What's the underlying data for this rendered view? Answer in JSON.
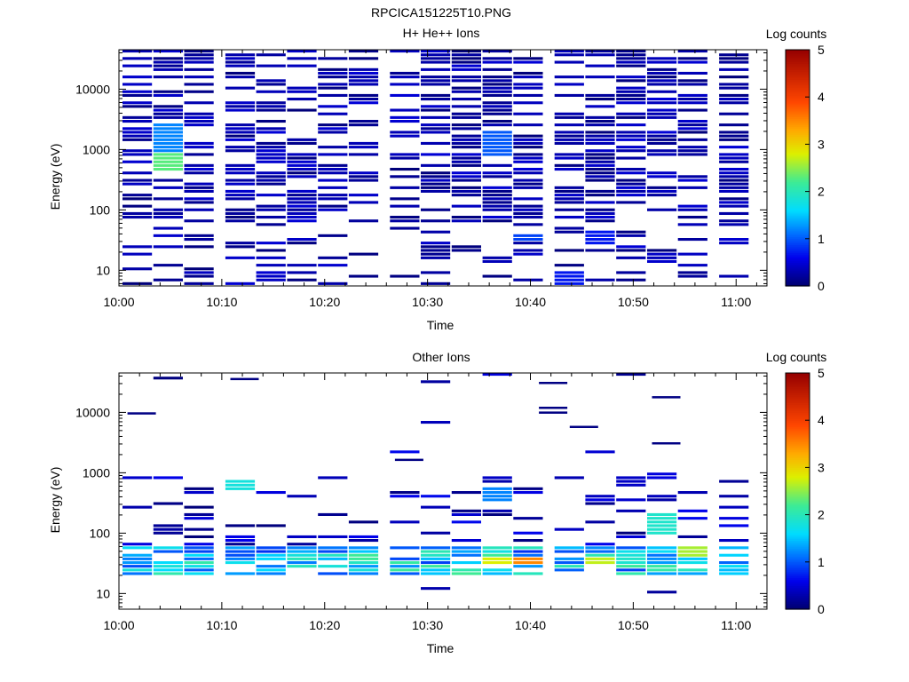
{
  "figure_title": "RPCICA151225T10.PNG",
  "chart_data": [
    {
      "type": "heatmap",
      "title": "H+ He++ Ions",
      "xlabel": "Time",
      "ylabel": "Energy (eV)",
      "x_ticks": [
        "10:00",
        "10:10",
        "10:20",
        "10:30",
        "10:40",
        "10:50",
        "11:00"
      ],
      "x_range": [
        "10:00",
        "11:03"
      ],
      "y_scale": "log",
      "y_ticks": [
        "10",
        "100",
        "1000",
        "10000"
      ],
      "y_range": [
        5.5,
        45000
      ],
      "colorbar": {
        "label": "Log counts",
        "ticks": [
          "0",
          "1",
          "2",
          "3",
          "4",
          "5"
        ],
        "range": [
          0,
          5
        ]
      },
      "time_bins": [
        "10:00",
        "10:03",
        "10:06",
        "10:10",
        "10:13",
        "10:16",
        "10:19",
        "10:22",
        "10:26",
        "10:29",
        "10:32",
        "10:35",
        "10:38",
        "10:42",
        "10:45",
        "10:48",
        "10:51",
        "10:54",
        "10:58"
      ],
      "hot_spots": [
        {
          "time": "10:04",
          "energy_min": 400,
          "energy_max": 900,
          "log_counts": 2.3
        },
        {
          "time": "10:04",
          "energy_min": 900,
          "energy_max": 2500,
          "log_counts": 1.2
        },
        {
          "time": "10:36",
          "energy_min": 700,
          "energy_max": 2000,
          "log_counts": 1.0
        },
        {
          "time": "10:40",
          "energy_min": 28,
          "energy_max": 40,
          "log_counts": 0.9
        },
        {
          "time": "10:43",
          "energy_min": 5.5,
          "energy_max": 9,
          "log_counts": 0.7
        },
        {
          "time": "10:46",
          "energy_min": 25,
          "energy_max": 45,
          "log_counts": 0.7
        }
      ],
      "background_log_counts": 0.2
    },
    {
      "type": "heatmap",
      "title": "Other Ions",
      "xlabel": "Time",
      "ylabel": "Energy (eV)",
      "x_ticks": [
        "10:00",
        "10:10",
        "10:20",
        "10:30",
        "10:40",
        "10:50",
        "11:00"
      ],
      "x_range": [
        "10:00",
        "11:03"
      ],
      "y_scale": "log",
      "y_ticks": [
        "10",
        "100",
        "1000",
        "10000"
      ],
      "y_range": [
        5.5,
        45000
      ],
      "colorbar": {
        "label": "Log counts",
        "ticks": [
          "0",
          "1",
          "2",
          "3",
          "4",
          "5"
        ],
        "range": [
          0,
          5
        ]
      },
      "time_bins": [
        "10:00",
        "10:03",
        "10:06",
        "10:10",
        "10:13",
        "10:16",
        "10:19",
        "10:22",
        "10:26",
        "10:29",
        "10:32",
        "10:35",
        "10:38",
        "10:42",
        "10:45",
        "10:48",
        "10:51",
        "10:54",
        "10:58"
      ],
      "hot_spots": [
        {
          "time": "10:40",
          "energy_min": 30,
          "energy_max": 38,
          "log_counts": 3.5
        },
        {
          "time": "10:35",
          "energy_min": 28,
          "energy_max": 38,
          "log_counts": 2.8
        },
        {
          "time": "10:46",
          "energy_min": 28,
          "energy_max": 38,
          "log_counts": 2.7
        },
        {
          "time": "10:54",
          "energy_min": 40,
          "energy_max": 55,
          "log_counts": 2.6
        },
        {
          "time": "10:51",
          "energy_min": 90,
          "energy_max": 200,
          "log_counts": 1.9
        },
        {
          "time": "10:35",
          "energy_min": 300,
          "energy_max": 600,
          "log_counts": 1.2
        },
        {
          "time": "10:10",
          "energy_min": 500,
          "energy_max": 700,
          "log_counts": 1.8
        }
      ],
      "isolated_lines": [
        {
          "time": "10:01",
          "energy": 9700
        },
        {
          "time": "10:11",
          "energy": 36000
        },
        {
          "time": "10:41",
          "energy": 31000
        },
        {
          "time": "10:41",
          "energy": 12000
        },
        {
          "time": "10:41",
          "energy": 10000
        },
        {
          "time": "10:44",
          "energy": 5800
        },
        {
          "time": "10:52",
          "energy": 18000
        },
        {
          "time": "10:52",
          "energy": 3100
        },
        {
          "time": "10:27",
          "energy": 1650
        }
      ]
    }
  ]
}
